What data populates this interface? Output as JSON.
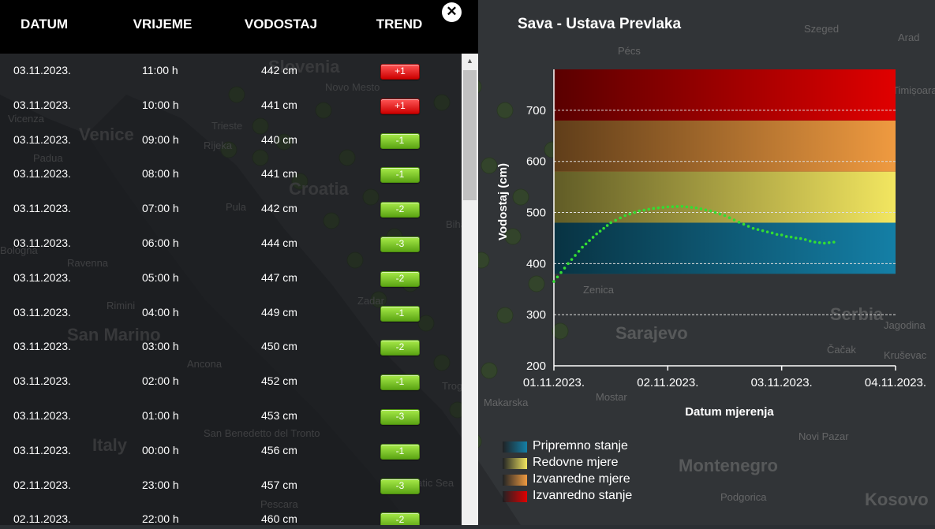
{
  "map": {
    "places": [
      {
        "name": "Slovenia",
        "size": "large"
      },
      {
        "name": "Novo Mesto",
        "size": "small"
      },
      {
        "name": "Venice",
        "size": "large"
      },
      {
        "name": "Vicenza",
        "size": "small"
      },
      {
        "name": "Padua",
        "size": "small"
      },
      {
        "name": "Trieste",
        "size": "small"
      },
      {
        "name": "Rijeka",
        "size": "small"
      },
      {
        "name": "Croatia",
        "size": "large"
      },
      {
        "name": "Pula",
        "size": "small"
      },
      {
        "name": "Bihać",
        "size": "small"
      },
      {
        "name": "Bologna",
        "size": "small"
      },
      {
        "name": "Ravenna",
        "size": "small"
      },
      {
        "name": "Rimini",
        "size": "small"
      },
      {
        "name": "San Marino",
        "size": "large"
      },
      {
        "name": "Ancona",
        "size": "small"
      },
      {
        "name": "Zadar",
        "size": "small"
      },
      {
        "name": "Italy",
        "size": "large"
      },
      {
        "name": "San Benedetto del Tronto",
        "size": "small"
      },
      {
        "name": "Pescara",
        "size": "small"
      },
      {
        "name": "Trogir",
        "size": "small"
      },
      {
        "name": "Makarska",
        "size": "small"
      },
      {
        "name": "Mostar",
        "size": "small"
      },
      {
        "name": "Zenica",
        "size": "small"
      },
      {
        "name": "Sarajevo",
        "size": "large"
      },
      {
        "name": "Pécs",
        "size": "small"
      },
      {
        "name": "Szeged",
        "size": "small"
      },
      {
        "name": "Arad",
        "size": "small"
      },
      {
        "name": "Serbia",
        "size": "large"
      },
      {
        "name": "Čačak",
        "size": "small"
      },
      {
        "name": "Kruševac",
        "size": "small"
      },
      {
        "name": "Novi Pazar",
        "size": "small"
      },
      {
        "name": "Montenegro",
        "size": "large"
      },
      {
        "name": "Podgorica",
        "size": "small"
      },
      {
        "name": "Kosovo",
        "size": "large"
      },
      {
        "name": "Timișoara",
        "size": "small"
      },
      {
        "name": "Jagodina",
        "size": "small"
      },
      {
        "name": "Adriatic Sea",
        "size": "small"
      }
    ]
  },
  "table": {
    "headers": {
      "date": "DATUM",
      "time": "VRIJEME",
      "level": "VODOSTAJ",
      "trend": "TREND"
    },
    "rows": [
      {
        "date": "03.11.2023.",
        "time": "11:00 h",
        "level": "442 cm",
        "trend": "+1",
        "dir": "up"
      },
      {
        "date": "03.11.2023.",
        "time": "10:00 h",
        "level": "441 cm",
        "trend": "+1",
        "dir": "up"
      },
      {
        "date": "03.11.2023.",
        "time": "09:00 h",
        "level": "440 cm",
        "trend": "-1",
        "dir": "down"
      },
      {
        "date": "03.11.2023.",
        "time": "08:00 h",
        "level": "441 cm",
        "trend": "-1",
        "dir": "down"
      },
      {
        "date": "03.11.2023.",
        "time": "07:00 h",
        "level": "442 cm",
        "trend": "-2",
        "dir": "down"
      },
      {
        "date": "03.11.2023.",
        "time": "06:00 h",
        "level": "444 cm",
        "trend": "-3",
        "dir": "down"
      },
      {
        "date": "03.11.2023.",
        "time": "05:00 h",
        "level": "447 cm",
        "trend": "-2",
        "dir": "down"
      },
      {
        "date": "03.11.2023.",
        "time": "04:00 h",
        "level": "449 cm",
        "trend": "-1",
        "dir": "down"
      },
      {
        "date": "03.11.2023.",
        "time": "03:00 h",
        "level": "450 cm",
        "trend": "-2",
        "dir": "down"
      },
      {
        "date": "03.11.2023.",
        "time": "02:00 h",
        "level": "452 cm",
        "trend": "-1",
        "dir": "down"
      },
      {
        "date": "03.11.2023.",
        "time": "01:00 h",
        "level": "453 cm",
        "trend": "-3",
        "dir": "down"
      },
      {
        "date": "03.11.2023.",
        "time": "00:00 h",
        "level": "456 cm",
        "trend": "-1",
        "dir": "down"
      },
      {
        "date": "02.11.2023.",
        "time": "23:00 h",
        "level": "457 cm",
        "trend": "-3",
        "dir": "down"
      },
      {
        "date": "02.11.2023.",
        "time": "22:00 h",
        "level": "460 cm",
        "trend": "-2",
        "dir": "down"
      }
    ]
  },
  "chart_panel": {
    "title": "Sava - Ustava Prevlaka",
    "close_label": "✕"
  },
  "chart_data": {
    "type": "line",
    "title": "Sava - Ustava Prevlaka",
    "xlabel": "Datum mjerenja",
    "ylabel": "Vodostaj (cm)",
    "xlim": [
      "01.11.2023.",
      "04.11.2023."
    ],
    "ylim": [
      200,
      780
    ],
    "x_ticks": [
      "01.11.2023.",
      "02.11.2023.",
      "03.11.2023.",
      "04.11.2023."
    ],
    "y_ticks": [
      200,
      300,
      400,
      500,
      600,
      700
    ],
    "grid": true,
    "bands": [
      {
        "name": "Pripremno stanje",
        "from": 380,
        "to": 480,
        "color": "#147fa6"
      },
      {
        "name": "Redovne mjere",
        "from": 480,
        "to": 580,
        "color": "#f2e660"
      },
      {
        "name": "Izvanredne mjere",
        "from": 580,
        "to": 680,
        "color": "#ef9a40"
      },
      {
        "name": "Izvanredno stanje",
        "from": 680,
        "to": 780,
        "color": "#e00000"
      }
    ],
    "series": [
      {
        "color": "#33dd33",
        "points": [
          [
            "01.11.2023. 00:00",
            365
          ],
          [
            "01.11.2023. 03:00",
            400
          ],
          [
            "01.11.2023. 06:00",
            432
          ],
          [
            "01.11.2023. 09:00",
            458
          ],
          [
            "01.11.2023. 12:00",
            480
          ],
          [
            "01.11.2023. 15:00",
            494
          ],
          [
            "01.11.2023. 18:00",
            503
          ],
          [
            "01.11.2023. 21:00",
            508
          ],
          [
            "02.11.2023. 00:00",
            511
          ],
          [
            "02.11.2023. 03:00",
            512
          ],
          [
            "02.11.2023. 06:00",
            509
          ],
          [
            "02.11.2023. 09:00",
            503
          ],
          [
            "02.11.2023. 12:00",
            494
          ],
          [
            "02.11.2023. 15:00",
            481
          ],
          [
            "02.11.2023. 18:00",
            469
          ],
          [
            "02.11.2023. 21:00",
            462
          ],
          [
            "02.11.2023. 22:00",
            460
          ],
          [
            "02.11.2023. 23:00",
            457
          ],
          [
            "03.11.2023. 00:00",
            456
          ],
          [
            "03.11.2023. 01:00",
            453
          ],
          [
            "03.11.2023. 02:00",
            452
          ],
          [
            "03.11.2023. 03:00",
            450
          ],
          [
            "03.11.2023. 04:00",
            449
          ],
          [
            "03.11.2023. 05:00",
            447
          ],
          [
            "03.11.2023. 06:00",
            444
          ],
          [
            "03.11.2023. 07:00",
            442
          ],
          [
            "03.11.2023. 08:00",
            441
          ],
          [
            "03.11.2023. 09:00",
            440
          ],
          [
            "03.11.2023. 10:00",
            441
          ],
          [
            "03.11.2023. 11:00",
            442
          ]
        ]
      }
    ]
  },
  "legend": [
    {
      "label": "Pripremno stanje",
      "color": "#147fa6"
    },
    {
      "label": "Redovne mjere",
      "color": "#f2e660"
    },
    {
      "label": "Izvanredne mjere",
      "color": "#ef9a40"
    },
    {
      "label": "Izvanredno stanje",
      "color": "#e00000"
    }
  ]
}
